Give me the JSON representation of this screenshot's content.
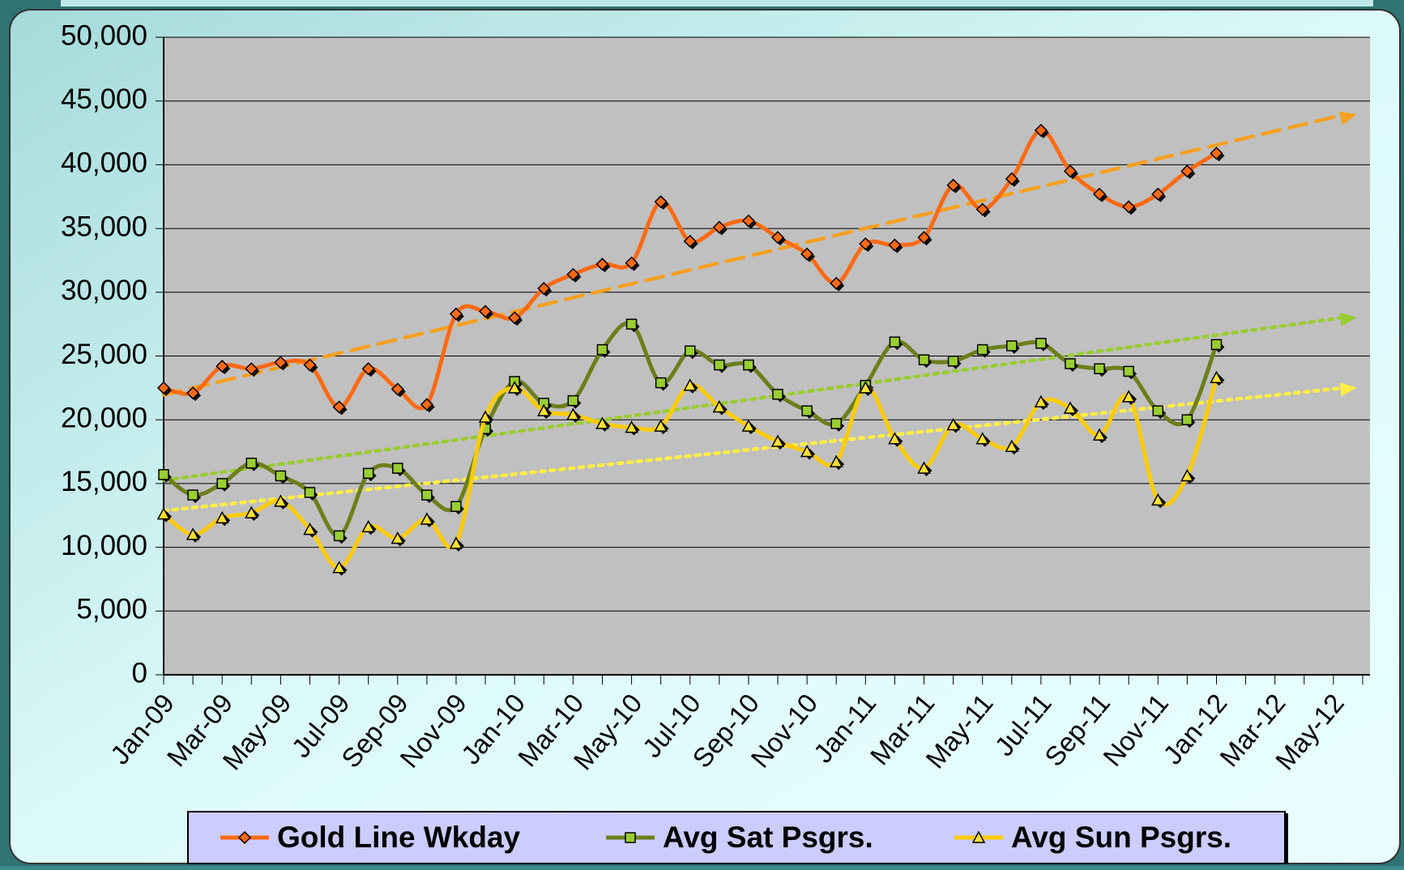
{
  "chart_data": {
    "type": "line",
    "categories": [
      "Jan-09",
      null,
      "Mar-09",
      null,
      "May-09",
      null,
      "Jul-09",
      null,
      "Sep-09",
      null,
      "Nov-09",
      null,
      "Jan-10",
      null,
      "Mar-10",
      null,
      "May-10",
      null,
      "Jul-10",
      null,
      "Sep-10",
      null,
      "Nov-10",
      null,
      "Jan-11",
      null,
      "Mar-11",
      null,
      "May-11",
      null,
      "Jul-11",
      null,
      "Sep-11",
      null,
      "Nov-11",
      null,
      "Jan-12",
      null,
      "Mar-12",
      null,
      "May-12",
      null
    ],
    "series": [
      {
        "name": "Gold Line Wkday",
        "color": "#ff6a13",
        "marker": "diamond",
        "trendline": "dashed",
        "trend_color": "#f5a020",
        "values": [
          22500,
          22100,
          24200,
          24000,
          24500,
          24300,
          21000,
          24000,
          22400,
          21200,
          28300,
          28500,
          28000,
          30300,
          31400,
          32200,
          32300,
          37100,
          34000,
          35100,
          35600,
          34300,
          33000,
          30700,
          33800,
          33700,
          34300,
          38400,
          36500,
          38900,
          42700,
          39500,
          37700,
          36700,
          37700,
          39500,
          40900,
          null,
          null,
          null,
          null,
          null
        ]
      },
      {
        "name": "Avg Sat Psgrs.",
        "color": "#6b7f1c",
        "marker": "square",
        "marker_color": "#9acd32",
        "trendline": "dotted",
        "trend_color": "#99cc33",
        "values": [
          15700,
          14100,
          15000,
          16600,
          15600,
          14300,
          10900,
          15800,
          16200,
          14100,
          13200,
          19300,
          23000,
          21300,
          21500,
          25500,
          27500,
          22900,
          25400,
          24300,
          24300,
          22000,
          20700,
          19700,
          22700,
          26100,
          24700,
          24600,
          25500,
          25800,
          26000,
          24400,
          24000,
          23800,
          20700,
          20000,
          25900,
          null,
          null,
          null,
          null,
          null
        ]
      },
      {
        "name": "Avg Sun  Psgrs.",
        "color": "#ffcc00",
        "marker": "triangle",
        "marker_color": "#ffe033",
        "trendline": "dotted",
        "trend_color": "#ffee44",
        "values": [
          12600,
          11000,
          12300,
          12700,
          13600,
          11400,
          8400,
          11600,
          10700,
          12200,
          10300,
          20200,
          22500,
          20700,
          20400,
          19700,
          19400,
          19500,
          22700,
          21000,
          19500,
          18300,
          17500,
          16700,
          22500,
          18500,
          16200,
          19600,
          18500,
          17900,
          21400,
          20900,
          18800,
          21800,
          13700,
          15600,
          23300,
          null,
          null,
          null,
          null,
          null
        ]
      }
    ],
    "ylim": [
      0,
      50000
    ],
    "yticks": [
      0,
      {
        "value": 5000,
        "label": "5,000"
      },
      {
        "value": 10000,
        "label": "10,000"
      },
      {
        "value": 15000,
        "label": "15,000"
      },
      {
        "value": 20000,
        "label": "20,000"
      },
      {
        "value": 25000,
        "label": "25,000"
      },
      {
        "value": 30000,
        "label": "30,000"
      },
      {
        "value": 35000,
        "label": "35,000"
      },
      {
        "value": 40000,
        "label": "40,000"
      },
      {
        "value": 45000,
        "label": "45,000"
      },
      {
        "value": 50000,
        "label": "50,000"
      }
    ],
    "grid": true,
    "legend": "bottom"
  }
}
